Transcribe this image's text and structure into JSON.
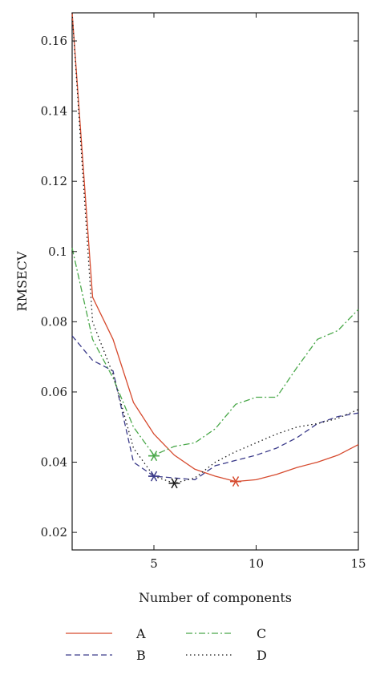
{
  "chart_data": {
    "type": "line",
    "xlabel": "Number of components",
    "ylabel": "RMSECV",
    "xlim": [
      1,
      15
    ],
    "ylim": [
      0.015,
      0.168
    ],
    "xticks": [
      5,
      10,
      15
    ],
    "yticks": [
      0.02,
      0.04,
      0.06,
      0.08,
      0.1,
      0.12,
      0.14,
      0.16
    ],
    "ytick_labels": [
      "0.02",
      "0.04",
      "0.06",
      "0.08",
      "0.1",
      "0.12",
      "0.14",
      "0.16"
    ],
    "grid": false,
    "legend_placement": "below",
    "series": [
      {
        "name": "A",
        "color": "#d64a2e",
        "dash": "solid",
        "x": [
          1,
          2,
          3,
          4,
          5,
          6,
          7,
          8,
          9,
          10,
          11,
          12,
          13,
          14,
          15
        ],
        "y": [
          0.168,
          0.087,
          0.075,
          0.057,
          0.048,
          0.042,
          0.038,
          0.036,
          0.0345,
          0.035,
          0.0365,
          0.0385,
          0.04,
          0.042,
          0.045
        ],
        "marker_x": 9,
        "marker_y": 0.0345
      },
      {
        "name": "B",
        "color": "#3b3b8a",
        "dash": "dashed",
        "x": [
          1,
          2,
          3,
          4,
          5,
          6,
          7,
          8,
          9,
          10,
          11,
          12,
          13,
          14,
          15
        ],
        "y": [
          0.076,
          0.069,
          0.066,
          0.04,
          0.036,
          0.0355,
          0.035,
          0.039,
          0.0405,
          0.042,
          0.044,
          0.047,
          0.051,
          0.053,
          0.054
        ],
        "marker_x": 5,
        "marker_y": 0.036
      },
      {
        "name": "C",
        "color": "#4aa84a",
        "dash": "dashdot",
        "x": [
          1,
          2,
          3,
          4,
          5,
          6,
          7,
          8,
          9,
          10,
          11,
          12,
          13,
          14,
          15
        ],
        "y": [
          0.101,
          0.075,
          0.064,
          0.05,
          0.042,
          0.0445,
          0.0455,
          0.0495,
          0.0565,
          0.0585,
          0.0585,
          0.067,
          0.075,
          0.0775,
          0.0835
        ],
        "marker_x": 5,
        "marker_y": 0.0418
      },
      {
        "name": "D",
        "color": "#1a1a1a",
        "dash": "dotted",
        "x": [
          1,
          2,
          3,
          4,
          5,
          6,
          7,
          8,
          9,
          10,
          11,
          12,
          13,
          14,
          15
        ],
        "y": [
          0.168,
          0.08,
          0.065,
          0.044,
          0.036,
          0.034,
          0.0355,
          0.04,
          0.043,
          0.0455,
          0.048,
          0.05,
          0.051,
          0.0525,
          0.055
        ],
        "marker_x": 6,
        "marker_y": 0.034
      }
    ]
  }
}
